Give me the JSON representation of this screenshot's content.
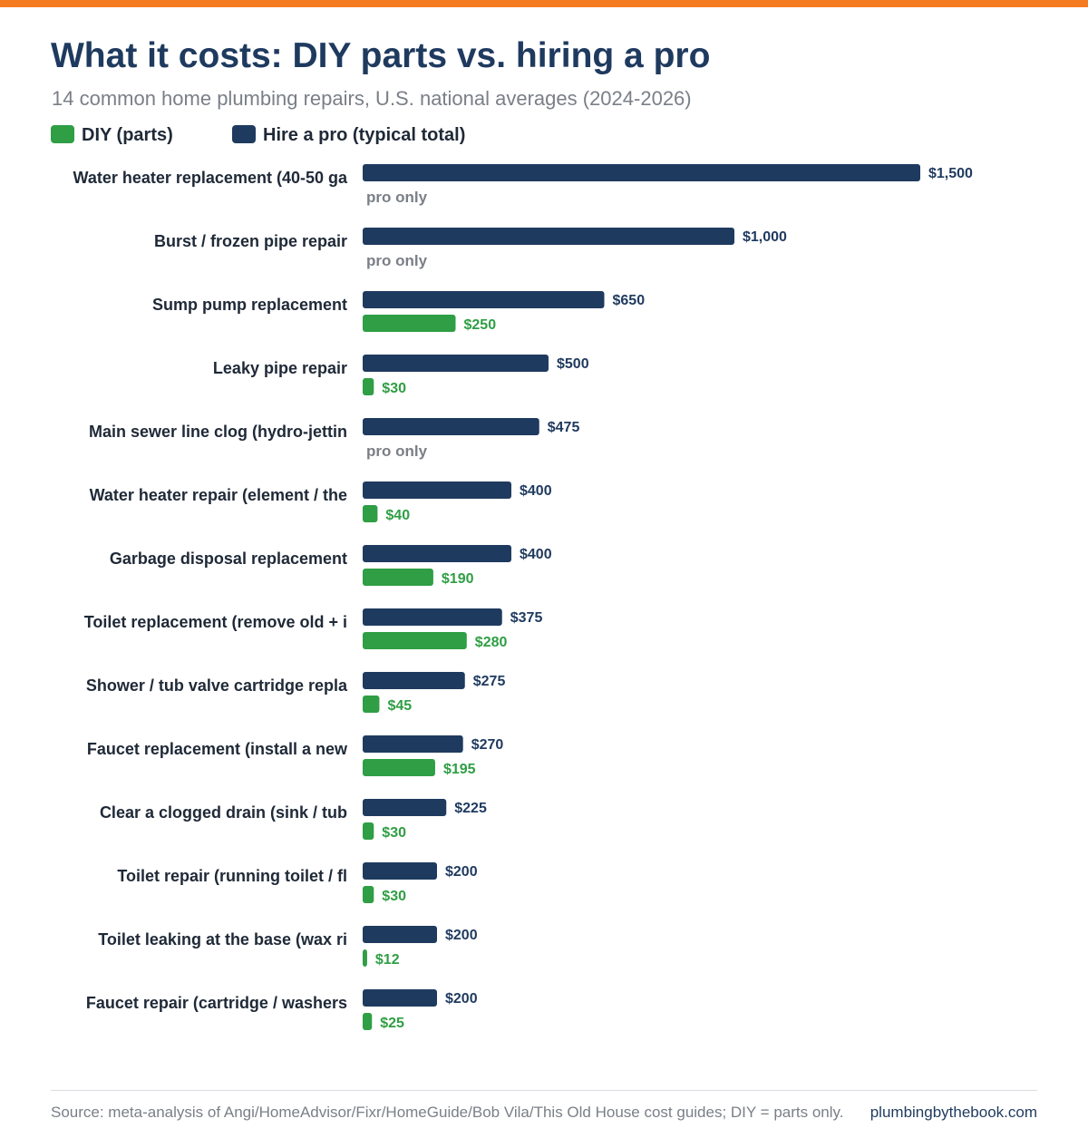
{
  "header": {
    "title": "What it costs: DIY parts vs. hiring a pro",
    "subtitle": "14 common home plumbing repairs, U.S. national averages (2024-2026)"
  },
  "colors": {
    "accent_bar": "#f47b20",
    "pro": "#1f3a5f",
    "diy": "#2f9e44",
    "pro_only_text": "#7a7f87",
    "label_text": "#1f2937"
  },
  "chart_data": {
    "type": "bar",
    "orientation": "horizontal",
    "categories": [
      "Water heater replacement (40-50 ga",
      "Burst / frozen pipe repair",
      "Sump pump replacement",
      "Leaky pipe repair",
      "Main sewer line clog (hydro-jettin",
      "Water heater repair (element / the",
      "Garbage disposal replacement",
      "Toilet replacement (remove old + i",
      "Shower / tub valve cartridge repla",
      "Faucet replacement (install a new ",
      "Clear a clogged drain (sink / tub ",
      "Toilet repair (running toilet / fl",
      "Toilet leaking at the base (wax ri",
      "Faucet repair (cartridge / washers"
    ],
    "series": [
      {
        "name": "Hire a pro (typical total)",
        "values": [
          1500,
          1000,
          650,
          500,
          475,
          400,
          400,
          375,
          275,
          270,
          225,
          200,
          200,
          200
        ],
        "labels": [
          "$1,500",
          "$1,000",
          "$650",
          "$500",
          "$475",
          "$400",
          "$400",
          "$375",
          "$275",
          "$270",
          "$225",
          "$200",
          "$200",
          "$200"
        ]
      },
      {
        "name": "DIY (parts)",
        "values": [
          null,
          null,
          250,
          30,
          null,
          40,
          190,
          280,
          45,
          195,
          30,
          30,
          12,
          25
        ],
        "labels": [
          "pro only",
          "pro only",
          "$250",
          "$30",
          "pro only",
          "$40",
          "$190",
          "$280",
          "$45",
          "$195",
          "$30",
          "$30",
          "$12",
          "$25"
        ]
      }
    ],
    "xlim": [
      0,
      1500
    ],
    "grid": false,
    "legend_position": "top-left"
  },
  "footer": {
    "source": "Source: meta-analysis of Angi/HomeAdvisor/Fixr/HomeGuide/Bob Vila/This Old House cost guides; DIY = parts only.",
    "site": "plumbingbythebook.com"
  }
}
